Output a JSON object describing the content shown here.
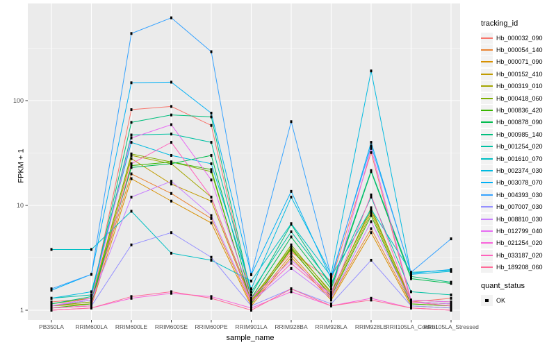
{
  "axes": {
    "x_title": "sample_name",
    "y_title": "FPKM + 1"
  },
  "legend": {
    "tracking_title": "tracking_id",
    "quant_title": "quant_status",
    "quant_ok_label": "OK"
  },
  "theme": {
    "panel_bg": "#EBEBEB",
    "grid_color": "#FFFFFF",
    "axis_text_color": "#4D4D4D",
    "tick_color": "#333333",
    "key_bg": "#F2F2F2",
    "marker_color": "#000000"
  },
  "chart_data": {
    "type": "line",
    "xlabel": "sample_name",
    "ylabel": "FPKM + 1",
    "yscale": "log10",
    "ytick_values": [
      1,
      10,
      100
    ],
    "ytick_labels": [
      "1",
      "10",
      "100"
    ],
    "ylim": [
      1,
      850
    ],
    "grid": true,
    "legend_position": "right",
    "marker": "black-square",
    "categories": [
      "PB350LA",
      "RRIM600LA",
      "RRIM600LE",
      "RRIM600SE",
      "RRIM600PE",
      "RRIM901LA",
      "RRIM928BA",
      "RRIM928LA",
      "RRIM928LE",
      "RRII105LA_Control",
      "RRII105LA_Stressed"
    ],
    "series": [
      {
        "name": "Hb_000032_090",
        "color": "#F8766D",
        "values": [
          1.2,
          1.3,
          82,
          88,
          58,
          1.3,
          3.6,
          1.9,
          32,
          1.2,
          1.3
        ]
      },
      {
        "name": "Hb_000054_140",
        "color": "#EA8331",
        "values": [
          1.1,
          1.2,
          20,
          13,
          7.5,
          1.15,
          3.4,
          1.3,
          6.0,
          1.15,
          1.1
        ]
      },
      {
        "name": "Hb_000071_090",
        "color": "#D89000",
        "values": [
          1.05,
          1.1,
          18,
          11,
          6.8,
          1.1,
          3.2,
          1.25,
          5.5,
          1.1,
          1.05
        ]
      },
      {
        "name": "Hb_000152_410",
        "color": "#C09B00",
        "values": [
          1.1,
          1.15,
          28,
          16,
          11,
          1.2,
          3.8,
          1.4,
          8.5,
          1.2,
          1.15
        ]
      },
      {
        "name": "Hb_000319_010",
        "color": "#A3A500",
        "values": [
          1.15,
          1.3,
          30,
          25,
          12,
          1.25,
          4.0,
          1.5,
          9.0,
          1.25,
          1.2
        ]
      },
      {
        "name": "Hb_000418_060",
        "color": "#7CAE00",
        "values": [
          1.1,
          1.2,
          31,
          26,
          21,
          1.2,
          4.2,
          1.45,
          9.5,
          1.2,
          1.15
        ]
      },
      {
        "name": "Hb_000836_420",
        "color": "#39B600",
        "values": [
          1.05,
          1.15,
          24,
          26,
          22,
          1.15,
          3.9,
          1.35,
          8.0,
          1.15,
          1.1
        ]
      },
      {
        "name": "Hb_000878_090",
        "color": "#00BB4E",
        "values": [
          1.1,
          1.25,
          23,
          25,
          30,
          1.3,
          5.0,
          1.6,
          21,
          2.0,
          1.8
        ]
      },
      {
        "name": "Hb_000985_140",
        "color": "#00BF7D",
        "values": [
          1.15,
          1.35,
          62,
          73,
          70,
          1.4,
          6.6,
          1.7,
          21.5,
          2.1,
          1.85
        ]
      },
      {
        "name": "Hb_001254_020",
        "color": "#00C1A3",
        "values": [
          1.3,
          1.4,
          47,
          48,
          40,
          1.5,
          5.6,
          1.8,
          12,
          1.5,
          1.4
        ]
      },
      {
        "name": "Hb_001610_070",
        "color": "#00BFC4",
        "values": [
          3.8,
          3.8,
          8.8,
          3.5,
          3.0,
          1.9,
          6.7,
          2.1,
          9.2,
          2.3,
          2.4
        ]
      },
      {
        "name": "Hb_002374_030",
        "color": "#00BAE0",
        "values": [
          1.3,
          1.5,
          40,
          30,
          25,
          1.6,
          12,
          2.2,
          192,
          2.2,
          2.35
        ]
      },
      {
        "name": "Hb_003078_070",
        "color": "#00B0F6",
        "values": [
          1.55,
          2.2,
          148,
          150,
          76,
          2.18,
          13.6,
          2.0,
          40,
          2.25,
          2.45
        ]
      },
      {
        "name": "Hb_004393_030",
        "color": "#35A2FF",
        "values": [
          1.6,
          2.2,
          437,
          617,
          293,
          2.2,
          63,
          2.1,
          37,
          2.3,
          4.8
        ]
      },
      {
        "name": "Hb_007007_030",
        "color": "#9590FF",
        "values": [
          1.05,
          1.1,
          4.2,
          5.5,
          3.2,
          1.1,
          1.6,
          1.15,
          3.0,
          1.1,
          1.05
        ]
      },
      {
        "name": "Hb_008810_030",
        "color": "#C77CFF",
        "values": [
          1.1,
          1.25,
          12,
          17,
          8.0,
          1.2,
          2.5,
          1.3,
          7.0,
          1.2,
          1.15
        ]
      },
      {
        "name": "Hb_012799_040",
        "color": "#E76BF3",
        "values": [
          1.1,
          1.3,
          44,
          59,
          17.5,
          1.3,
          3.0,
          1.4,
          35,
          1.25,
          1.2
        ]
      },
      {
        "name": "Hb_021254_020",
        "color": "#FA62DB",
        "values": [
          1.0,
          1.05,
          1.3,
          1.45,
          1.35,
          1.05,
          1.5,
          1.1,
          1.3,
          1.05,
          1.0
        ]
      },
      {
        "name": "Hb_033187_020",
        "color": "#FF62BC",
        "values": [
          1.05,
          1.1,
          25,
          40,
          12,
          1.2,
          2.8,
          1.35,
          12.6,
          1.2,
          1.1
        ]
      },
      {
        "name": "Hb_189208_060",
        "color": "#FF6A98",
        "values": [
          1.0,
          1.05,
          1.35,
          1.5,
          1.3,
          1.0,
          1.6,
          1.1,
          1.25,
          1.05,
          1.0
        ]
      }
    ],
    "quant_status": "OK"
  }
}
